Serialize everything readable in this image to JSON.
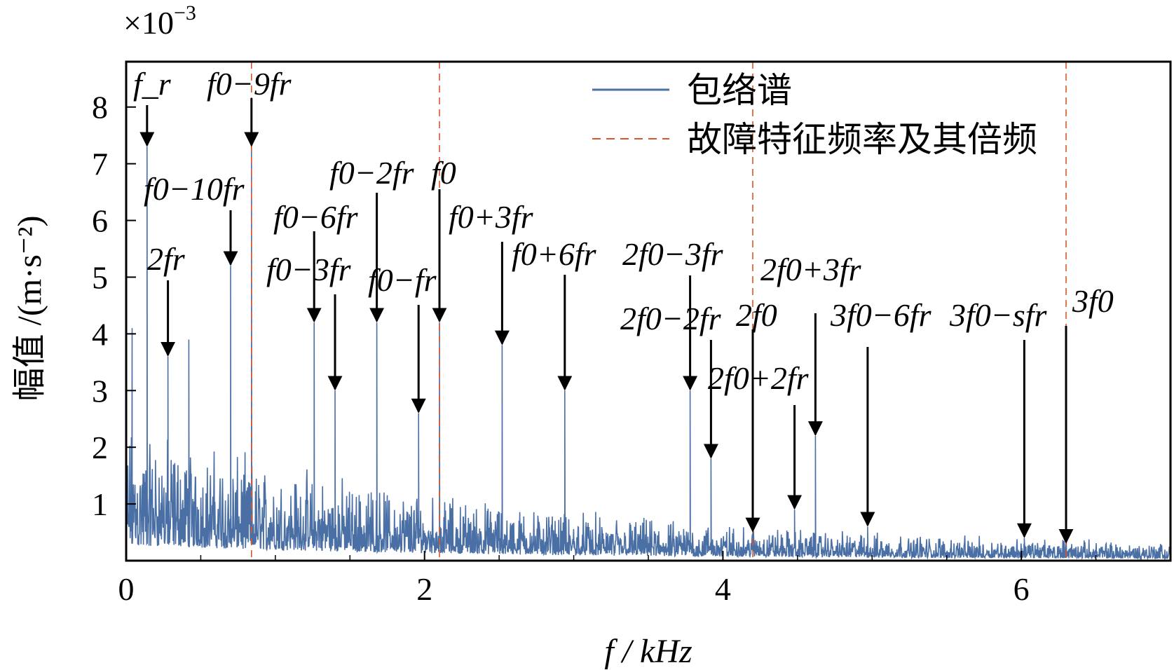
{
  "chart_data": {
    "type": "line",
    "xlabel": "f / kHz",
    "ylabel": "幅值 /(m·s⁻²)",
    "y_exponent": "×10⁻³",
    "xlim": [
      0,
      7
    ],
    "ylim": [
      0,
      8.8
    ],
    "x_ticks": [
      0,
      2,
      4,
      6
    ],
    "y_ticks": [
      1,
      2,
      3,
      4,
      5,
      6,
      7,
      8
    ],
    "grid": false,
    "legend_position": "top-right",
    "series": [
      {
        "name": "包络谱",
        "color": "#4a6fa5",
        "peaks": [
          {
            "x": 0.04,
            "y": 4.1
          },
          {
            "x": 0.14,
            "y": 7.3
          },
          {
            "x": 0.28,
            "y": 3.6
          },
          {
            "x": 0.42,
            "y": 3.9
          },
          {
            "x": 0.7,
            "y": 5.2
          },
          {
            "x": 0.84,
            "y": 7.3
          },
          {
            "x": 1.26,
            "y": 4.2
          },
          {
            "x": 1.4,
            "y": 3.0
          },
          {
            "x": 1.68,
            "y": 4.2
          },
          {
            "x": 1.96,
            "y": 2.6
          },
          {
            "x": 2.1,
            "y": 4.2
          },
          {
            "x": 2.52,
            "y": 3.8
          },
          {
            "x": 2.94,
            "y": 3.0
          },
          {
            "x": 3.78,
            "y": 3.0
          },
          {
            "x": 3.92,
            "y": 1.8
          },
          {
            "x": 4.2,
            "y": 0.5
          },
          {
            "x": 4.48,
            "y": 0.9
          },
          {
            "x": 4.62,
            "y": 2.2
          },
          {
            "x": 4.97,
            "y": 0.6
          },
          {
            "x": 6.02,
            "y": 0.4
          },
          {
            "x": 6.3,
            "y": 0.3
          }
        ]
      },
      {
        "name": "故障特征频率及其倍频",
        "color": "#d9572b",
        "lines_at": [
          0.84,
          2.1,
          4.2,
          6.3
        ]
      }
    ],
    "annotations": [
      {
        "label": "f_r",
        "x": 0.14
      },
      {
        "label": "f0−10fr",
        "x": 0.7
      },
      {
        "label": "f0−9fr",
        "x": 0.84
      },
      {
        "label": "2fr",
        "x": 0.28
      },
      {
        "label": "f0−6fr",
        "x": 1.26
      },
      {
        "label": "f0−3fr",
        "x": 1.4
      },
      {
        "label": "f0−2fr",
        "x": 1.68
      },
      {
        "label": "f0−fr",
        "x": 1.96
      },
      {
        "label": "f0",
        "x": 2.1
      },
      {
        "label": "f0+3fr",
        "x": 2.52
      },
      {
        "label": "f0+6fr",
        "x": 2.94
      },
      {
        "label": "2f0−3fr",
        "x": 3.78
      },
      {
        "label": "2f0−2fr",
        "x": 3.92
      },
      {
        "label": "2f0",
        "x": 4.2
      },
      {
        "label": "2f0+2fr",
        "x": 4.48
      },
      {
        "label": "2f0+3fr",
        "x": 4.62
      },
      {
        "label": "3f0−6fr",
        "x": 4.97
      },
      {
        "label": "3f0−sfr",
        "x": 6.02
      },
      {
        "label": "3f0",
        "x": 6.3
      }
    ]
  }
}
